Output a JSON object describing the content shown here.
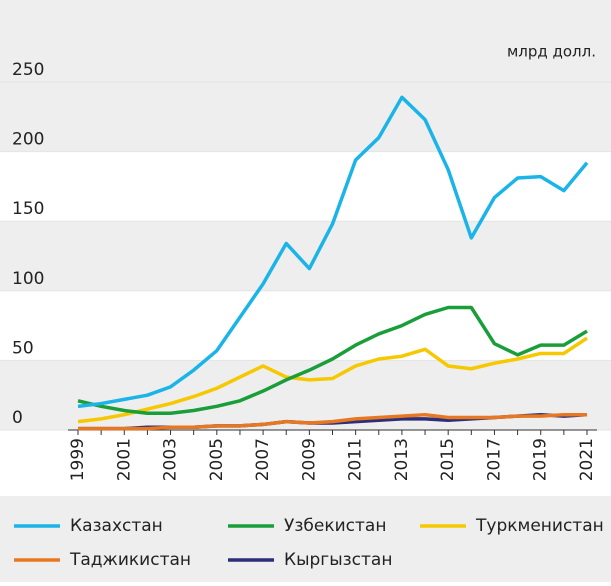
{
  "chart_data": {
    "type": "line",
    "unit": "млрд долл.",
    "categories": [
      "1999",
      null,
      "2001",
      null,
      "2003",
      null,
      "2005",
      null,
      "2007",
      null,
      "2009",
      null,
      "2011",
      null,
      "2013",
      null,
      "2015",
      null,
      "2017",
      null,
      "2019",
      null,
      "2021"
    ],
    "series": [
      {
        "name": "Казахстан",
        "color": "#1ab4e8",
        "values": [
          17,
          19,
          22,
          25,
          31,
          43,
          57,
          81,
          105,
          134,
          116,
          148,
          194,
          210,
          239,
          223,
          187,
          138,
          167,
          181,
          182,
          172,
          192
        ]
      },
      {
        "name": "Узбекистан",
        "color": "#1a9e3a",
        "values": [
          21,
          17,
          14,
          12,
          12,
          14,
          17,
          21,
          28,
          36,
          43,
          51,
          61,
          69,
          75,
          83,
          88,
          88,
          62,
          54,
          61,
          61,
          71
        ]
      },
      {
        "name": "Туркменистан",
        "color": "#f5c800",
        "values": [
          6,
          8,
          11,
          15,
          19,
          24,
          30,
          38,
          46,
          38,
          36,
          37,
          46,
          51,
          53,
          58,
          46,
          44,
          48,
          51,
          55,
          55,
          66
        ]
      },
      {
        "name": "Таджикистан",
        "color": "#e87722",
        "values": [
          1,
          1,
          1,
          1,
          2,
          2,
          3,
          3,
          4,
          6,
          5,
          6,
          8,
          9,
          10,
          11,
          9,
          9,
          9,
          10,
          10,
          11,
          11
        ]
      },
      {
        "name": "Кыргызстан",
        "color": "#2b2f7a",
        "values": [
          1,
          1,
          1,
          2,
          2,
          2,
          3,
          3,
          4,
          6,
          5,
          5,
          6,
          7,
          8,
          8,
          7,
          8,
          9,
          10,
          11,
          10,
          11
        ]
      }
    ],
    "ylim": [
      0,
      250
    ],
    "yticks": [
      0,
      50,
      100,
      150,
      200,
      250
    ],
    "grid": true
  }
}
